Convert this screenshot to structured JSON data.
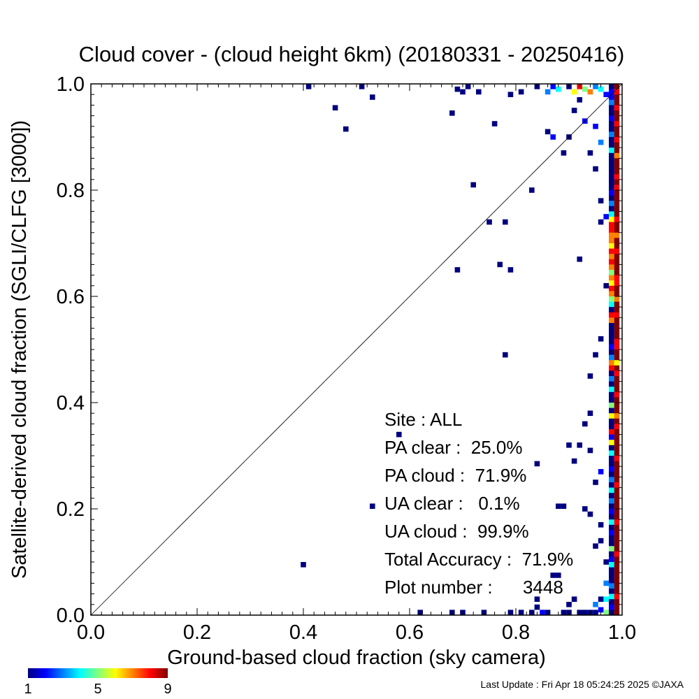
{
  "chart_data": {
    "type": "heatmap",
    "title": "Cloud cover - (cloud height 6km)  (20180331 - 20250416)",
    "xlabel": "Ground-based cloud fraction (sky camera)",
    "ylabel": "Satellite-derived cloud fraction (SGLI/CLFG [3000])",
    "xlim": [
      0,
      1
    ],
    "ylim": [
      0,
      1
    ],
    "xticks": [
      "0.0",
      "0.2",
      "0.4",
      "0.6",
      "0.8",
      "1.0"
    ],
    "yticks": [
      "0.0",
      "0.2",
      "0.4",
      "0.6",
      "0.8",
      "1.0"
    ],
    "grid": false,
    "diagonal_line": true,
    "colorbar": {
      "min": 1,
      "max": 9,
      "ticks": [
        "1",
        "5",
        "9"
      ],
      "colors": [
        "#00007f",
        "#0000ff",
        "#0080ff",
        "#00ffff",
        "#80ff80",
        "#ffff00",
        "#ff8000",
        "#ff0000",
        "#7f0000"
      ]
    },
    "stats": [
      {
        "label": "Site : ALL"
      },
      {
        "label": "PA clear :  25.0%"
      },
      {
        "label": "PA cloud :  71.9%"
      },
      {
        "label": "UA clear :   0.1%"
      },
      {
        "label": "UA cloud :  99.9%"
      },
      {
        "label": "Total Accuracy :  71.9%"
      },
      {
        "label": "Plot number :      3448"
      }
    ],
    "points": [
      {
        "x": 0.41,
        "y": 0.995,
        "c": 1
      },
      {
        "x": 0.51,
        "y": 0.995,
        "c": 1
      },
      {
        "x": 0.46,
        "y": 0.955,
        "c": 1
      },
      {
        "x": 0.48,
        "y": 0.915,
        "c": 1
      },
      {
        "x": 0.53,
        "y": 0.975,
        "c": 1
      },
      {
        "x": 0.68,
        "y": 0.945,
        "c": 1
      },
      {
        "x": 0.69,
        "y": 0.99,
        "c": 1
      },
      {
        "x": 0.7,
        "y": 0.985,
        "c": 1
      },
      {
        "x": 0.71,
        "y": 0.995,
        "c": 1
      },
      {
        "x": 0.73,
        "y": 0.985,
        "c": 1
      },
      {
        "x": 0.76,
        "y": 0.925,
        "c": 1
      },
      {
        "x": 0.79,
        "y": 0.98,
        "c": 1
      },
      {
        "x": 0.81,
        "y": 0.985,
        "c": 1
      },
      {
        "x": 0.84,
        "y": 0.995,
        "c": 1
      },
      {
        "x": 0.86,
        "y": 0.985,
        "c": 3
      },
      {
        "x": 0.87,
        "y": 0.995,
        "c": 2
      },
      {
        "x": 0.88,
        "y": 0.99,
        "c": 4
      },
      {
        "x": 0.9,
        "y": 0.995,
        "c": 1
      },
      {
        "x": 0.91,
        "y": 0.985,
        "c": 6
      },
      {
        "x": 0.92,
        "y": 0.995,
        "c": 8
      },
      {
        "x": 0.93,
        "y": 0.99,
        "c": 5
      },
      {
        "x": 0.94,
        "y": 0.985,
        "c": 7
      },
      {
        "x": 0.95,
        "y": 0.995,
        "c": 3
      },
      {
        "x": 0.96,
        "y": 0.99,
        "c": 4
      },
      {
        "x": 0.97,
        "y": 0.98,
        "c": 2
      },
      {
        "x": 0.72,
        "y": 0.81,
        "c": 1
      },
      {
        "x": 0.83,
        "y": 0.8,
        "c": 1
      },
      {
        "x": 0.75,
        "y": 0.74,
        "c": 1
      },
      {
        "x": 0.78,
        "y": 0.74,
        "c": 1
      },
      {
        "x": 0.69,
        "y": 0.65,
        "c": 1
      },
      {
        "x": 0.77,
        "y": 0.66,
        "c": 1
      },
      {
        "x": 0.79,
        "y": 0.65,
        "c": 1
      },
      {
        "x": 0.92,
        "y": 0.67,
        "c": 1
      },
      {
        "x": 0.86,
        "y": 0.91,
        "c": 1
      },
      {
        "x": 0.87,
        "y": 0.9,
        "c": 2
      },
      {
        "x": 0.89,
        "y": 0.87,
        "c": 1
      },
      {
        "x": 0.9,
        "y": 0.9,
        "c": 1
      },
      {
        "x": 0.91,
        "y": 0.95,
        "c": 1
      },
      {
        "x": 0.92,
        "y": 0.97,
        "c": 1
      },
      {
        "x": 0.93,
        "y": 0.93,
        "c": 2
      },
      {
        "x": 0.94,
        "y": 0.87,
        "c": 1
      },
      {
        "x": 0.95,
        "y": 0.92,
        "c": 2
      },
      {
        "x": 0.96,
        "y": 0.89,
        "c": 3
      },
      {
        "x": 0.95,
        "y": 0.84,
        "c": 1
      },
      {
        "x": 0.96,
        "y": 0.78,
        "c": 1
      },
      {
        "x": 0.97,
        "y": 0.75,
        "c": 2
      },
      {
        "x": 0.96,
        "y": 0.74,
        "c": 1
      },
      {
        "x": 0.97,
        "y": 0.62,
        "c": 1
      },
      {
        "x": 0.78,
        "y": 0.49,
        "c": 1
      },
      {
        "x": 0.58,
        "y": 0.34,
        "c": 1
      },
      {
        "x": 0.53,
        "y": 0.205,
        "c": 1
      },
      {
        "x": 0.4,
        "y": 0.095,
        "c": 1
      },
      {
        "x": 0.88,
        "y": 0.205,
        "c": 1
      },
      {
        "x": 0.89,
        "y": 0.205,
        "c": 1
      },
      {
        "x": 0.9,
        "y": 0.32,
        "c": 1
      },
      {
        "x": 0.92,
        "y": 0.32,
        "c": 1
      },
      {
        "x": 0.94,
        "y": 0.31,
        "c": 1
      },
      {
        "x": 0.93,
        "y": 0.36,
        "c": 1
      },
      {
        "x": 0.94,
        "y": 0.38,
        "c": 1
      },
      {
        "x": 0.95,
        "y": 0.25,
        "c": 1
      },
      {
        "x": 0.96,
        "y": 0.27,
        "c": 2
      },
      {
        "x": 0.94,
        "y": 0.45,
        "c": 1
      },
      {
        "x": 0.95,
        "y": 0.49,
        "c": 1
      },
      {
        "x": 0.96,
        "y": 0.52,
        "c": 1
      },
      {
        "x": 0.84,
        "y": 0.285,
        "c": 1
      },
      {
        "x": 0.91,
        "y": 0.29,
        "c": 1
      },
      {
        "x": 0.93,
        "y": 0.2,
        "c": 1
      },
      {
        "x": 0.94,
        "y": 0.19,
        "c": 1
      },
      {
        "x": 0.96,
        "y": 0.17,
        "c": 1
      },
      {
        "x": 0.95,
        "y": 0.13,
        "c": 1
      },
      {
        "x": 0.96,
        "y": 0.14,
        "c": 1
      },
      {
        "x": 0.97,
        "y": 0.1,
        "c": 1
      },
      {
        "x": 0.7,
        "y": 0.005,
        "c": 1
      },
      {
        "x": 0.62,
        "y": 0.005,
        "c": 1
      },
      {
        "x": 0.68,
        "y": 0.005,
        "c": 1
      },
      {
        "x": 0.74,
        "y": 0.005,
        "c": 1
      },
      {
        "x": 0.79,
        "y": 0.005,
        "c": 1
      },
      {
        "x": 0.81,
        "y": 0.005,
        "c": 1
      },
      {
        "x": 0.83,
        "y": 0.005,
        "c": 1
      },
      {
        "x": 0.84,
        "y": 0.015,
        "c": 1
      },
      {
        "x": 0.84,
        "y": 0.03,
        "c": 1
      },
      {
        "x": 0.85,
        "y": 0.005,
        "c": 2
      },
      {
        "x": 0.86,
        "y": 0.005,
        "c": 1
      },
      {
        "x": 0.87,
        "y": 0.075,
        "c": 1
      },
      {
        "x": 0.88,
        "y": 0.075,
        "c": 1
      },
      {
        "x": 0.89,
        "y": 0.005,
        "c": 1
      },
      {
        "x": 0.9,
        "y": 0.005,
        "c": 1
      },
      {
        "x": 0.9,
        "y": 0.02,
        "c": 1
      },
      {
        "x": 0.91,
        "y": 0.03,
        "c": 1
      },
      {
        "x": 0.92,
        "y": 0.005,
        "c": 1
      },
      {
        "x": 0.93,
        "y": 0.005,
        "c": 1
      },
      {
        "x": 0.94,
        "y": 0.005,
        "c": 1
      },
      {
        "x": 0.95,
        "y": 0.005,
        "c": 1
      },
      {
        "x": 0.95,
        "y": 0.02,
        "c": 3
      },
      {
        "x": 0.96,
        "y": 0.01,
        "c": 2
      },
      {
        "x": 0.96,
        "y": 0.03,
        "c": 1
      },
      {
        "x": 0.97,
        "y": 0.03,
        "c": 4
      },
      {
        "x": 0.97,
        "y": 0.06,
        "c": 3
      },
      {
        "x": 0.97,
        "y": 0.005,
        "c": 5
      },
      {
        "x": 0.98,
        "y": 0.005,
        "c": 7
      }
    ],
    "edge_column": {
      "x": 0.99,
      "colors_top_to_bottom": [
        9,
        8,
        9,
        9,
        8,
        9,
        9,
        8,
        9,
        9,
        8,
        9,
        9,
        7,
        9,
        9,
        9,
        8,
        9,
        8,
        9,
        9,
        9,
        9,
        9,
        8,
        9,
        9,
        7,
        9,
        9,
        8,
        9,
        9,
        9,
        9,
        8,
        8,
        9,
        9,
        7,
        9,
        9,
        8,
        9,
        9,
        9,
        9,
        8,
        8,
        9,
        9,
        6,
        9,
        8,
        9,
        9,
        9,
        8,
        9,
        9,
        9,
        7,
        9,
        8,
        9,
        9,
        9,
        9,
        9,
        8,
        9,
        9,
        9,
        9,
        8,
        9,
        9,
        9,
        9,
        9,
        9,
        8,
        9,
        9,
        9,
        9,
        9,
        8,
        9,
        9,
        9,
        9,
        9,
        9,
        9,
        8,
        9,
        9,
        9
      ]
    },
    "second_column": {
      "x": 0.98,
      "colors_top_to_bottom": [
        1,
        2,
        2,
        3,
        1,
        1,
        2,
        1,
        1,
        3,
        1,
        1,
        4,
        1,
        1,
        1,
        1,
        1,
        1,
        1,
        2,
        1,
        3,
        1,
        4,
        6,
        8,
        8,
        7,
        7,
        6,
        8,
        7,
        8,
        7,
        5,
        7,
        6,
        8,
        7,
        5,
        4,
        1,
        8,
        7,
        1,
        1,
        1,
        1,
        2,
        1,
        3,
        7,
        8,
        1,
        3,
        1,
        4,
        1,
        1,
        5,
        1,
        6,
        1,
        1,
        8,
        2,
        6,
        1,
        4,
        1,
        1,
        2,
        1,
        3,
        1,
        4,
        1,
        3,
        1,
        2,
        1,
        4,
        1,
        2,
        1,
        1,
        5,
        1,
        2,
        4,
        1,
        1,
        1,
        3,
        1,
        4,
        1,
        2,
        1
      ]
    }
  },
  "footer": {
    "last_update": "Last Update : Fri Apr 18 05:24:25 2025  ©JAXA"
  }
}
